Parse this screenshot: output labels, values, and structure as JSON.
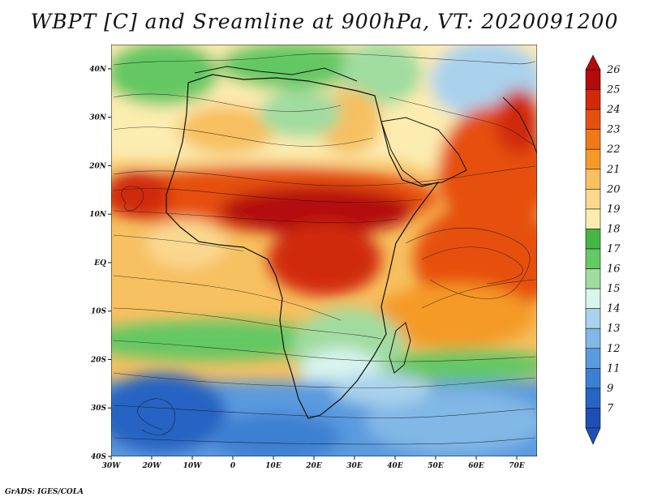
{
  "title": "WBPT [C] and Sreamline at 900hPa, VT: 2020091200",
  "credit": "GrADS: IGES/COLA",
  "axes": {
    "x_ticks": [
      "30W",
      "20W",
      "10W",
      "0",
      "10E",
      "20E",
      "30E",
      "40E",
      "50E",
      "60E",
      "70E"
    ],
    "y_ticks": [
      "40N",
      "30N",
      "20N",
      "10N",
      "EQ",
      "10S",
      "20S",
      "30S",
      "40S"
    ]
  },
  "colorbar": {
    "labels": [
      "26",
      "25",
      "24",
      "23",
      "22",
      "21",
      "20",
      "19",
      "18",
      "17",
      "16",
      "15",
      "14",
      "13",
      "12",
      "11",
      "9",
      "7"
    ],
    "colors": [
      "#b40a0a",
      "#d02a0c",
      "#e6500f",
      "#f07818",
      "#f59a28",
      "#f7c060",
      "#fad890",
      "#fcecb0",
      "#46b446",
      "#64c864",
      "#a0dca0",
      "#d8f4f0",
      "#aad2ec",
      "#82b8e6",
      "#5a9ade",
      "#3c80d2",
      "#2864c3",
      "#1e50b4"
    ]
  },
  "map": {
    "domain": "Africa and western Indian Ocean",
    "lon_range": [
      -30,
      75
    ],
    "lat_range": [
      -40,
      45
    ],
    "field": "wet-bulb potential temperature at 900hPa with streamlines"
  }
}
